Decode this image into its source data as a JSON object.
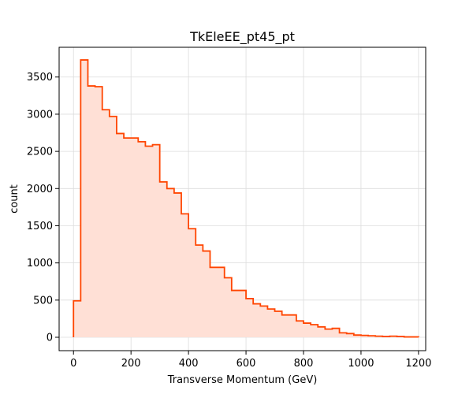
{
  "chart_data": {
    "type": "area",
    "histogram": true,
    "title": "TkEleEE_pt45_pt",
    "xlabel": "Transverse Momentum (GeV)",
    "ylabel": "count",
    "xlim": [
      -50,
      1225
    ],
    "ylim": [
      -180,
      3900
    ],
    "grid": true,
    "line_color": "#ff4500",
    "fill_color": "#ffe0d6",
    "xticks": [
      0,
      200,
      400,
      600,
      800,
      1000,
      1200
    ],
    "yticks": [
      0,
      500,
      1000,
      1500,
      2000,
      2500,
      3000,
      3500
    ],
    "xtick_labels": [
      "0",
      "200",
      "400",
      "600",
      "800",
      "1000",
      "1200"
    ],
    "ytick_labels": [
      "0",
      "500",
      "1000",
      "1500",
      "2000",
      "2500",
      "3000",
      "3500"
    ],
    "bin_edges": [
      0,
      25,
      50,
      75,
      100,
      125,
      150,
      175,
      200,
      225,
      250,
      275,
      300,
      325,
      350,
      375,
      400,
      425,
      450,
      475,
      500,
      525,
      550,
      575,
      600,
      625,
      650,
      675,
      700,
      725,
      750,
      775,
      800,
      825,
      850,
      875,
      900,
      925,
      950,
      975,
      1000,
      1025,
      1050,
      1075,
      1100,
      1125,
      1150,
      1175,
      1200
    ],
    "counts": [
      490,
      3730,
      3380,
      3370,
      3060,
      2970,
      2740,
      2680,
      2680,
      2630,
      2570,
      2590,
      2090,
      2000,
      1940,
      1660,
      1460,
      1240,
      1160,
      940,
      940,
      800,
      630,
      630,
      520,
      450,
      420,
      380,
      350,
      300,
      300,
      220,
      190,
      170,
      140,
      110,
      120,
      60,
      50,
      30,
      25,
      20,
      15,
      10,
      15,
      10,
      5,
      5
    ]
  }
}
